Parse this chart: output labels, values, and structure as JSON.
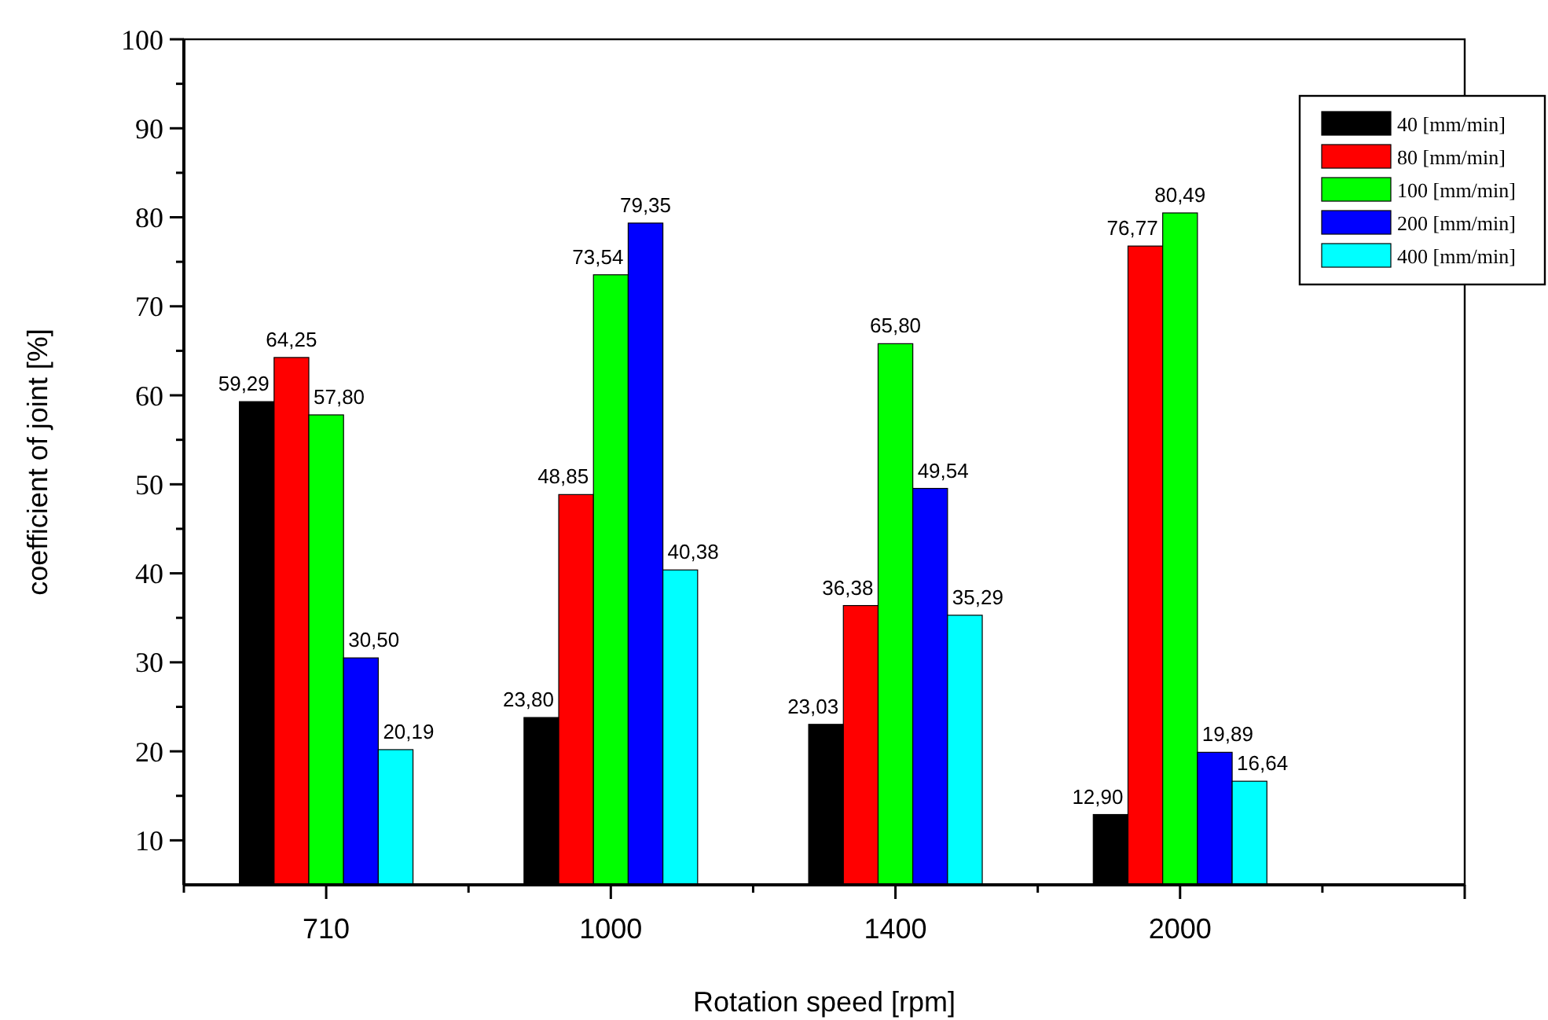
{
  "chart_data": {
    "type": "bar",
    "xlabel": "Rotation speed [rpm]",
    "ylabel": "coefficient of joint  [%]",
    "categories": [
      "710",
      "1000",
      "1400",
      "2000"
    ],
    "series": [
      {
        "name": "40 [mm/min]",
        "color": "#000000",
        "values": [
          59.29,
          23.8,
          23.03,
          12.9
        ],
        "value_labels": [
          "59,29",
          "23,80",
          "23,03",
          "12,90"
        ]
      },
      {
        "name": "80 [mm/min]",
        "color": "#ff0000",
        "values": [
          64.25,
          48.85,
          36.38,
          76.77
        ],
        "value_labels": [
          "64,25",
          "48,85",
          "36,38",
          "76,77"
        ]
      },
      {
        "name": "100 [mm/min]",
        "color": "#00ff00",
        "values": [
          57.8,
          73.54,
          65.8,
          80.49
        ],
        "value_labels": [
          "57,80",
          "73,54",
          "65,80",
          "80,49"
        ]
      },
      {
        "name": "200 [mm/min]",
        "color": "#0000ff",
        "values": [
          30.5,
          79.35,
          49.54,
          19.89
        ],
        "value_labels": [
          "30,50",
          "79,35",
          "49,54",
          "19,89"
        ]
      },
      {
        "name": "400 [mm/min]",
        "color": "#00ffff",
        "values": [
          20.19,
          40.38,
          35.29,
          16.64
        ],
        "value_labels": [
          "20,19",
          "40,38",
          "35,29",
          "16,64"
        ]
      }
    ],
    "ylim": [
      5,
      100
    ],
    "yticks": [
      10,
      {
        "value": 15,
        "label": null
      },
      20,
      {
        "value": 25,
        "label": null
      },
      30,
      {
        "value": 35,
        "label": null
      },
      40,
      {
        "value": 45,
        "label": null
      },
      50,
      {
        "value": 55,
        "label": null
      },
      60,
      {
        "value": 65,
        "label": null
      },
      70,
      {
        "value": 75,
        "label": null
      },
      80,
      {
        "value": 85,
        "label": null
      },
      90,
      {
        "value": 95,
        "label": null
      },
      100
    ],
    "grid": false,
    "legend": "top right"
  }
}
